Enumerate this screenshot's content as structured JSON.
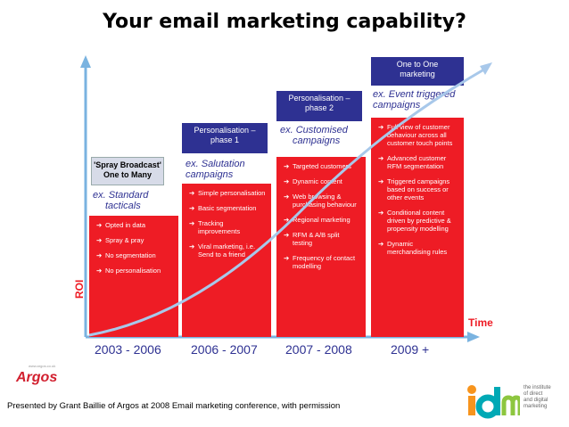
{
  "title": "Your email marketing capability?",
  "axes": {
    "y_label": "ROI",
    "x_label": "Time"
  },
  "phases": [
    {
      "header_lines": [
        "'Spray Broadcast'",
        "One to Many"
      ],
      "ex_lines": [
        "ex. Standard",
        "tacticals"
      ],
      "items": [
        "Opted in data",
        "Spray & pray",
        "No segmentation",
        "No personalisation"
      ],
      "year": "2003 - 2006"
    },
    {
      "header_lines": [
        "Personalisation –",
        "phase 1"
      ],
      "ex_lines": [
        "ex. Salutation",
        "campaigns"
      ],
      "items": [
        "Simple personalisation",
        "Basic segmentation",
        "Tracking improvements",
        "Viral marketing, i.e. Send to a friend"
      ],
      "year": "2006 - 2007"
    },
    {
      "header_lines": [
        "Personalisation –",
        "phase 2"
      ],
      "ex_lines": [
        "ex. Customised",
        "campaigns"
      ],
      "items": [
        "Targeted customers",
        "Dynamic content",
        "Web browsing & purchasing behaviour",
        "Regional marketing",
        "RFM & A/B split testing",
        "Frequency of contact modelling"
      ],
      "year": "2007 - 2008"
    },
    {
      "header_lines": [
        "One to One",
        "marketing"
      ],
      "ex_lines": [
        "ex. Event triggered",
        "campaigns"
      ],
      "items": [
        "Full view of customer behaviour across all customer touch points",
        "Advanced customer RFM segmentation",
        "Triggered campaigns based on success or other events",
        "Conditional content driven by predictive & propensity modelling",
        "Dynamic merchandising rules"
      ],
      "year": "2009 +"
    }
  ],
  "footer": "Presented by Grant Baillie of Argos at 2008 Email marketing conference, with permission",
  "logos": {
    "argos": "Argos",
    "argos_url": "www.argos.co.uk",
    "idm_mark": "idm",
    "idm_text_lines": [
      "the institute",
      "of direct",
      "and digital",
      "marketing"
    ]
  },
  "colors": {
    "red": "#ee1c25",
    "navy": "#2e3192",
    "curve": "#a8c8ea",
    "axis": "#7ab3e0"
  }
}
